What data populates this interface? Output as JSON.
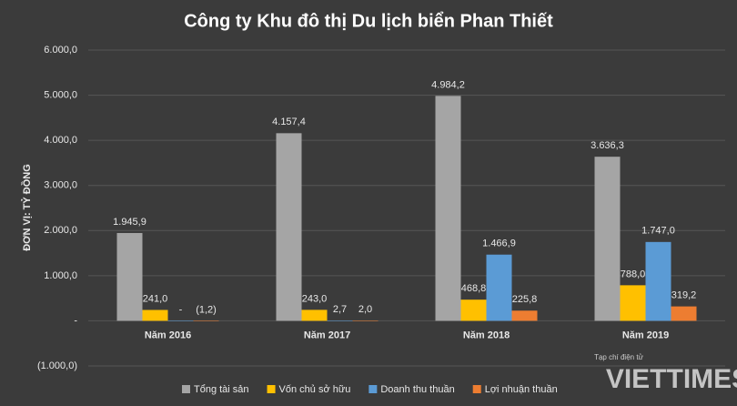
{
  "chart_data": {
    "type": "bar",
    "title": "Công ty Khu đô thị Du lịch biển Phan Thiết",
    "y_label": "ĐƠN VỊ: TỶ ĐỒNG",
    "categories": [
      "Năm 2016",
      "Năm 2017",
      "Năm 2018",
      "Năm 2019"
    ],
    "series": [
      {
        "name": "Tổng tài sản",
        "color": "#a5a5a5",
        "values": [
          1945.9,
          4157.4,
          4984.2,
          3636.3
        ],
        "value_labels": [
          "1.945,9",
          "4.157,4",
          "4.984,2",
          "3.636,3"
        ]
      },
      {
        "name": "Vốn chủ sở hữu",
        "color": "#ffc000",
        "values": [
          241.0,
          243.0,
          468.8,
          788.0
        ],
        "value_labels": [
          "241,0",
          "243,0",
          "468,8",
          "788,0"
        ]
      },
      {
        "name": "Doanh thu thuần",
        "color": "#5b9bd5",
        "values": [
          0,
          2.7,
          1466.9,
          1747.0
        ],
        "value_labels": [
          "-",
          "2,7",
          "1.466,9",
          "1.747,0"
        ]
      },
      {
        "name": "Lợi nhuận thuần",
        "color": "#ed7d31",
        "values": [
          -1.2,
          2.0,
          225.8,
          319.2
        ],
        "value_labels": [
          "(1,2)",
          "2,0",
          "225,8",
          "319,2"
        ]
      }
    ],
    "ylim": [
      -1000,
      6000
    ],
    "yticks": [
      {
        "value": -1000,
        "label": "(1.000,0)"
      },
      {
        "value": 0,
        "label": "-"
      },
      {
        "value": 1000,
        "label": "1.000,0"
      },
      {
        "value": 2000,
        "label": "2.000,0"
      },
      {
        "value": 3000,
        "label": "3.000,0"
      },
      {
        "value": 4000,
        "label": "4.000,0"
      },
      {
        "value": 5000,
        "label": "5.000,0"
      },
      {
        "value": 6000,
        "label": "6.000,0"
      }
    ],
    "grid": true,
    "legend": "bottom",
    "watermark": {
      "small": "Tạp chí điện tử",
      "brand": "VIETTIMES"
    }
  }
}
